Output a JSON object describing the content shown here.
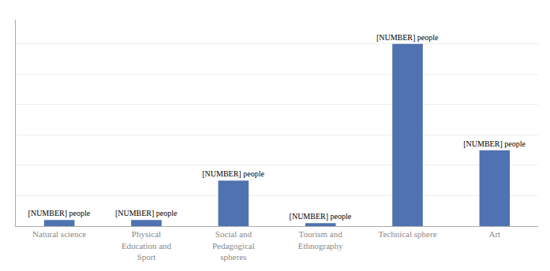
{
  "chart_data": {
    "type": "bar",
    "categories": [
      "Natural science",
      "Physical\nEducation and\nSport",
      "Social and\nPedagogical\nspheres",
      "Tourism and\nEthnography",
      "Technical sphere",
      "Art"
    ],
    "values": [
      2,
      2,
      15,
      1,
      60,
      25
    ],
    "value_labels": [
      "[NUMBER] people",
      "[NUMBER] people",
      "[NUMBER] people",
      "[NUMBER] people",
      "[NUMBER] people",
      "[NUMBER] people"
    ],
    "data_labels": true,
    "color": "#4f72b0",
    "ylim": [
      0,
      68
    ],
    "yticks": [
      10,
      20,
      30,
      40,
      50,
      60
    ],
    "grid": true,
    "tick_labels": "x"
  }
}
